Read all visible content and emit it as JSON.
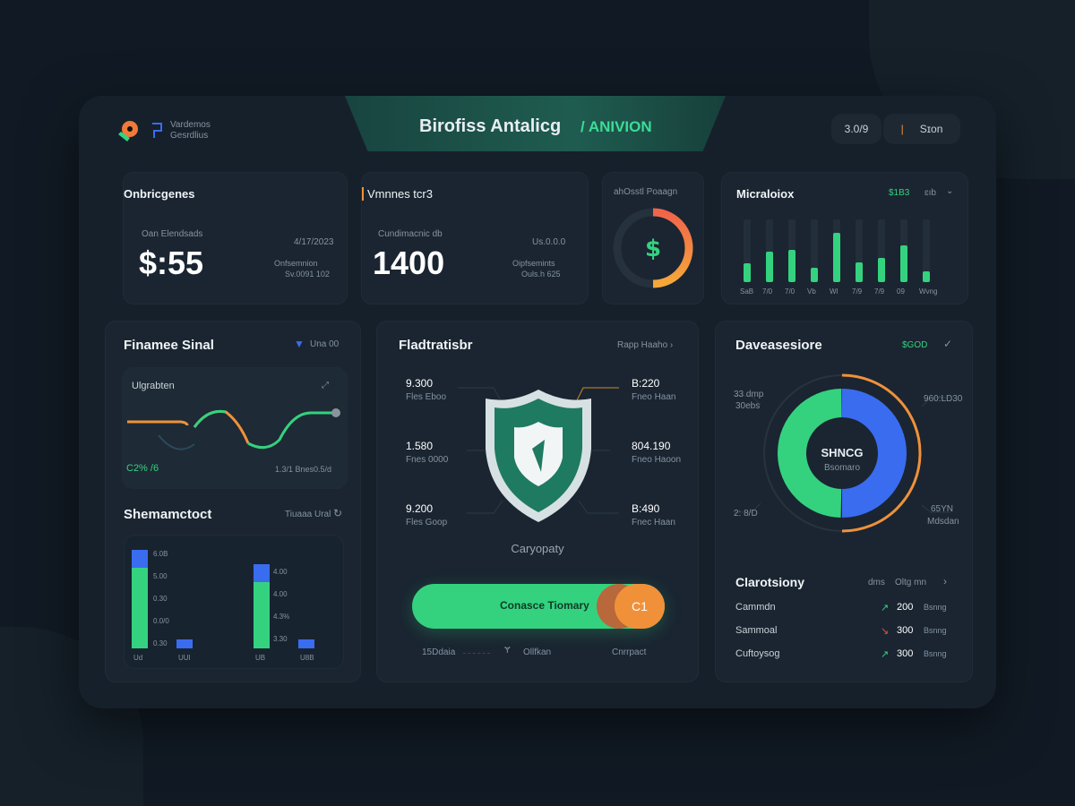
{
  "header": {
    "brand_line1": "Vardemos",
    "brand_line2": "Gesrdlius",
    "title": "Birofiss Antalicg",
    "subtitle": "/ ANIVION",
    "pill_left": "3.0/9",
    "pill_right": "Sɪon"
  },
  "colors": {
    "green": "#34d27f",
    "blue": "#3a6cf0",
    "orange": "#f0913a",
    "bg": "#111a24",
    "panel": "#16202b"
  },
  "card1": {
    "title": "Onbricgenes",
    "label": "Oan Elendsads",
    "value": "$:55",
    "date": "4/17/2023",
    "meta1": "Onfsemnion",
    "meta2": "Sv.0091 102"
  },
  "card2": {
    "title": "Vmnnes tcr3",
    "label": "Cundimacnic db",
    "value": "1400",
    "date": "Us.0.0.0",
    "meta1": "Oipfsemints",
    "meta2": "Ouls.h 625"
  },
  "card3": {
    "title": "ahOsstl Poaagn",
    "icon": "dollar-icon",
    "progress": 0.5
  },
  "card4": {
    "title": "Micraloiox",
    "value": "$1B3",
    "unit": "ɛıb",
    "bars": [
      0.3,
      0.48,
      0.51,
      0.23,
      0.78,
      0.31,
      0.38,
      0.58,
      0.17
    ],
    "labels": [
      "SaB",
      "7/0",
      "7/0",
      "Vb",
      "Wl",
      "7/9",
      "7/9",
      "09",
      "Wvng"
    ]
  },
  "card5": {
    "title": "Finamee Sinal",
    "filter": "Una 00",
    "inner_title": "Ulgrabten",
    "inner_value": "C2% /6",
    "inner_meta": "1.3/1 Bnes0.5/d",
    "title2": "Shemamctoct",
    "meta2": "Tiuaaa Ural",
    "bars": [
      {
        "green": 0.75,
        "blue": 0.12,
        "label": "6.0B",
        "tick": "Ud"
      },
      {
        "green": 0,
        "blue": 0.12,
        "label": "0.30",
        "tick": "UUl"
      },
      {
        "green": 0.62,
        "blue": 0.12,
        "label": "4.00",
        "tick": "UB"
      },
      {
        "green": 0,
        "blue": 0.12,
        "label": "4.00",
        "tick": "U8B"
      }
    ],
    "ticks_left": [
      "6.0B",
      "5.00",
      "0.30",
      "0.0/0",
      "0.30"
    ],
    "ticks_right": [
      "4.00",
      "4.00",
      "4.3%",
      "3.30"
    ]
  },
  "card6": {
    "title": "Fladtratisbr",
    "link": "Rapp Haaho ›",
    "stats": [
      {
        "v": "9.300",
        "l": "Fles Eboo"
      },
      {
        "v": "1.580",
        "l": "Fnes 0000"
      },
      {
        "v": "9.200",
        "l": "Fles Goop"
      },
      {
        "v": "B:220",
        "l": "Fneo Haan"
      },
      {
        "v": "804.190",
        "l": "Fneo Haoon"
      },
      {
        "v": "B:490",
        "l": "Fnec Haan"
      }
    ],
    "caption": "Caryopaty",
    "action": "Conasce Tiomary",
    "action_badge": "C1",
    "footer": [
      "15Ddaia",
      "Ollfkan",
      "Cnrrpact"
    ]
  },
  "card7": {
    "title": "Daveasesiore",
    "value": "$GOD",
    "center": "SHNCG",
    "center_sub": "Bsomaro",
    "labels": [
      "33 dmp",
      "30ebs",
      "2: 8/D",
      "960:LD30",
      "65YN",
      "Mdsdan"
    ],
    "donut": {
      "green": 0.5,
      "blue": 0.5
    },
    "title2": "Clarotsiony",
    "meta": "dms",
    "link": "Oltg mn",
    "rows": [
      {
        "name": "Cammdn",
        "v": "200",
        "t": "Bsnng",
        "dir": "up"
      },
      {
        "name": "Sammoal",
        "v": "300",
        "t": "Bsnng",
        "dir": "down"
      },
      {
        "name": "Cuftoysog",
        "v": "300",
        "t": "Bsnng",
        "dir": "up"
      }
    ]
  }
}
